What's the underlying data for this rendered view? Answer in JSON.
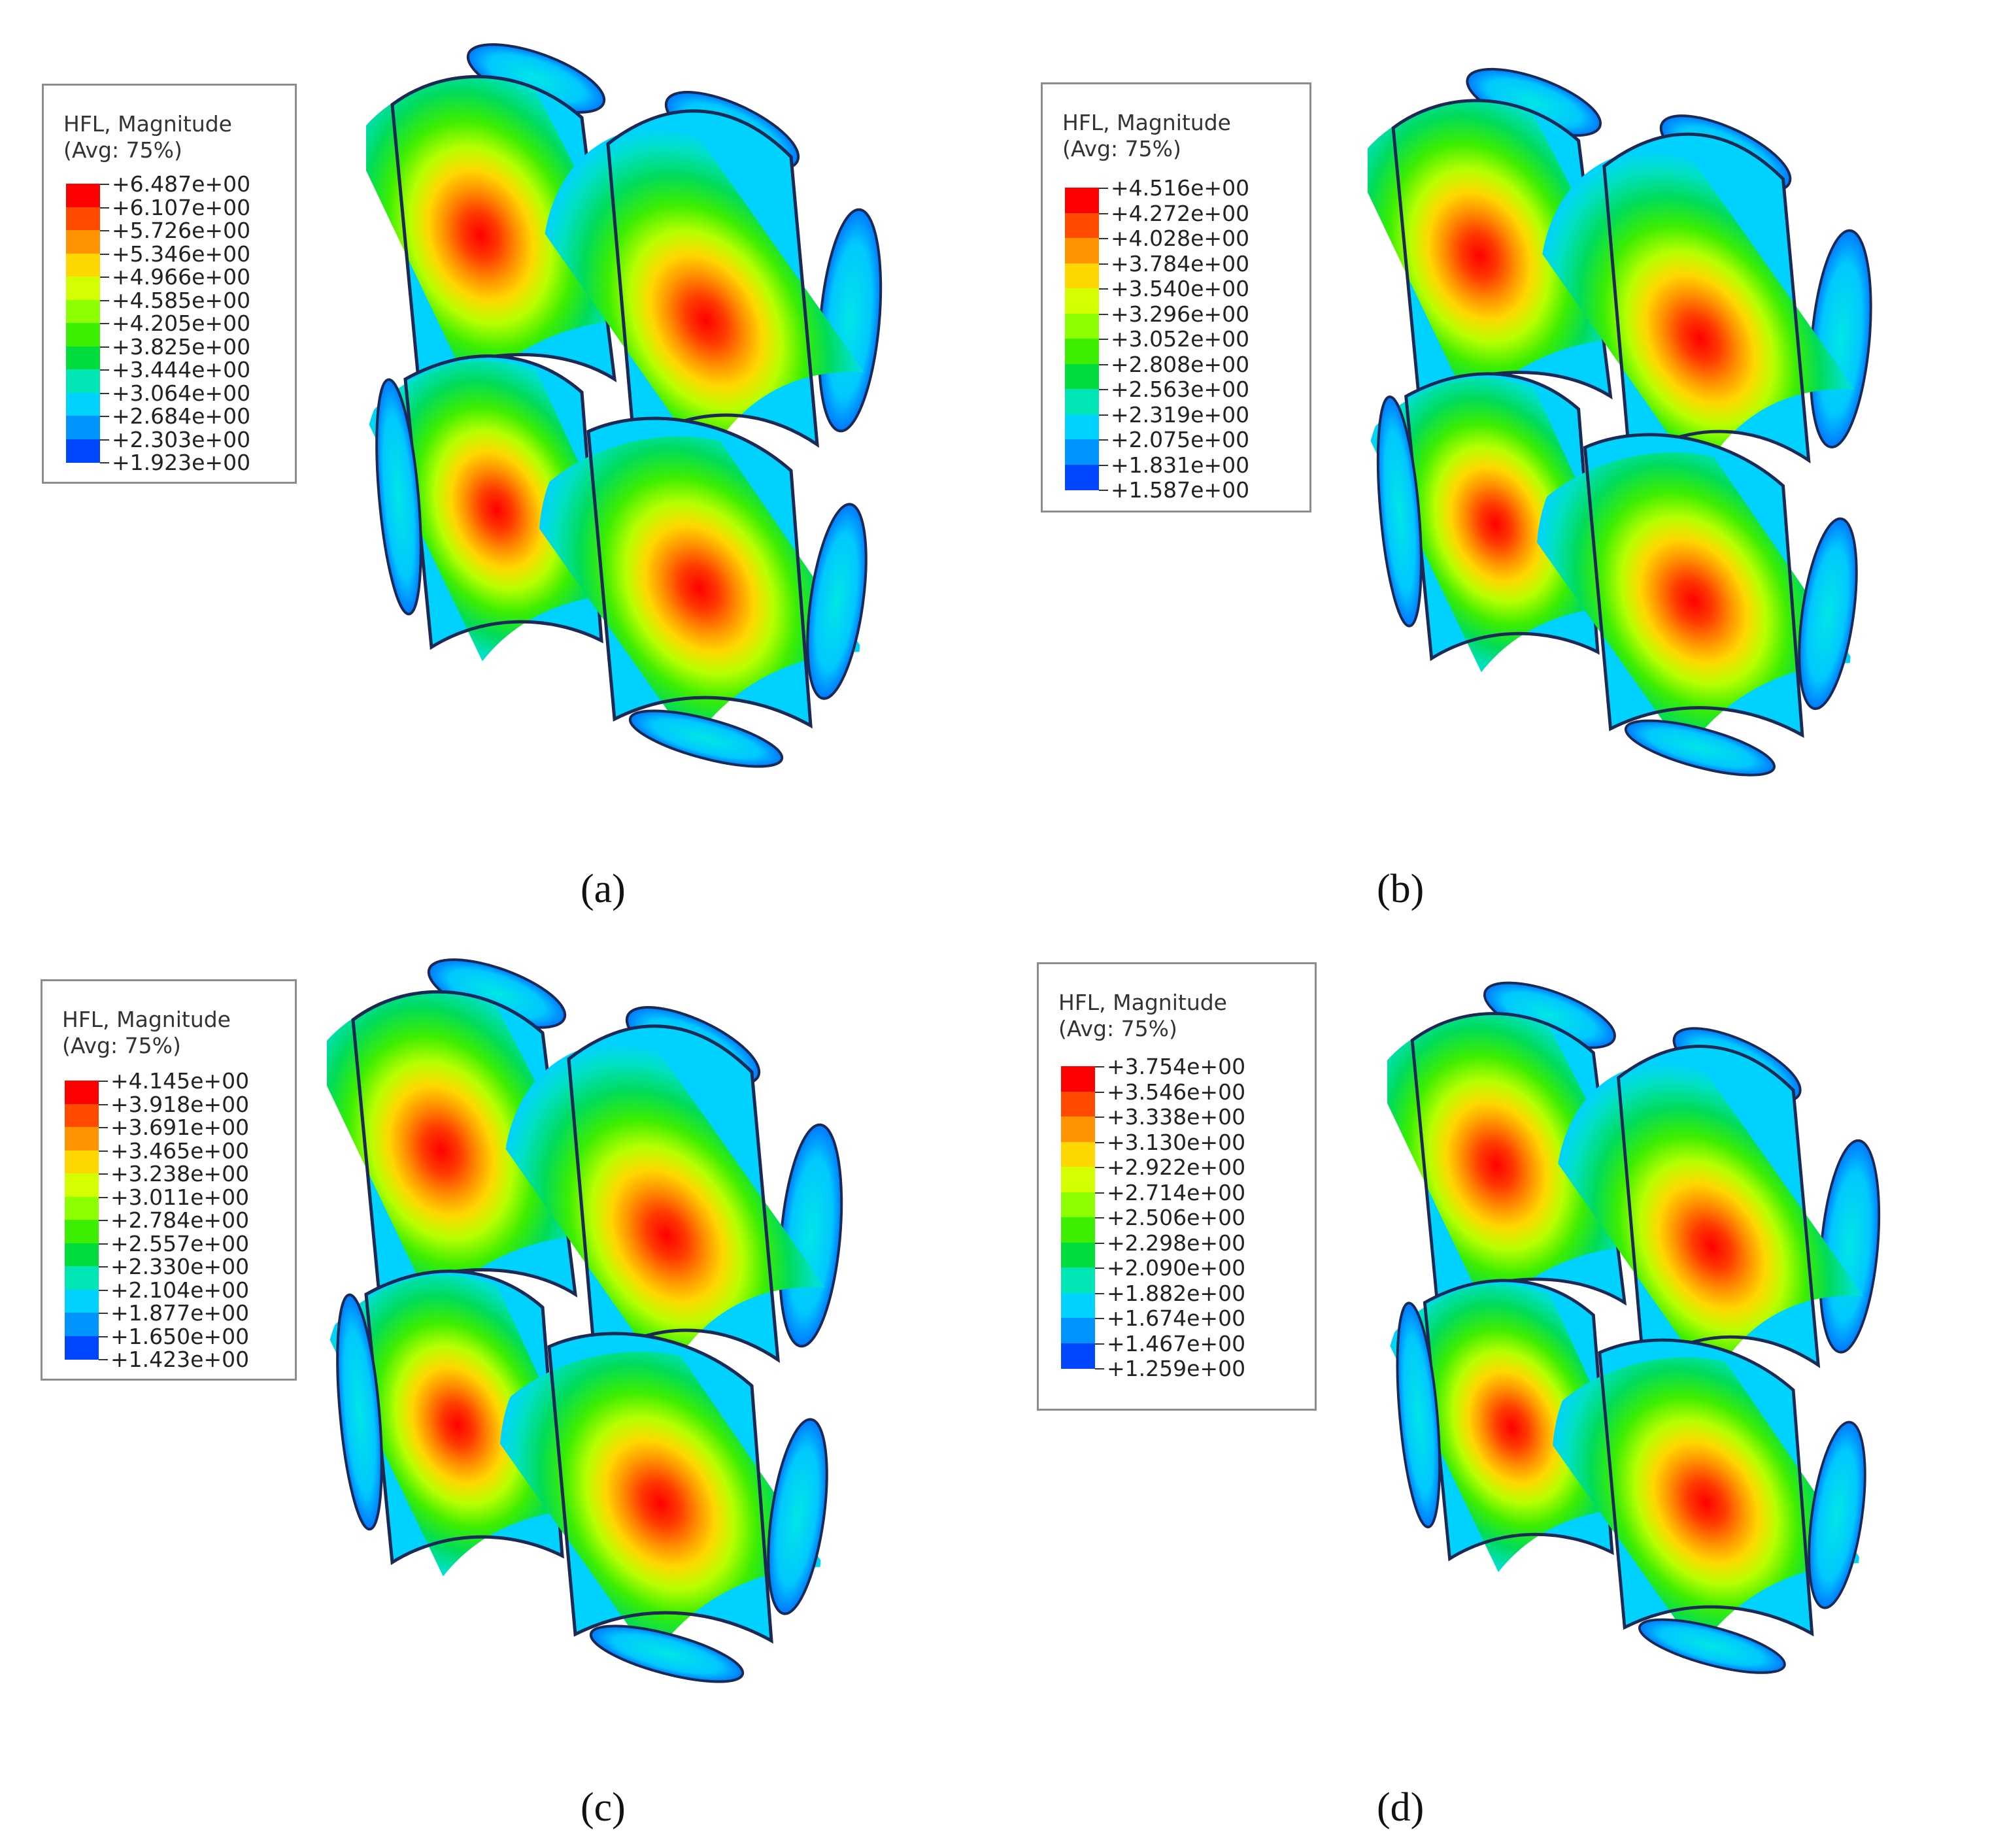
{
  "panels": [
    {
      "id": "a",
      "caption": "(a)",
      "legend": {
        "title": "HFL, Magnitude",
        "subtitle": "(Avg: 75%)",
        "values": [
          "+6.487e+00",
          "+6.107e+00",
          "+5.726e+00",
          "+5.346e+00",
          "+4.966e+00",
          "+4.585e+00",
          "+4.205e+00",
          "+3.825e+00",
          "+3.444e+00",
          "+3.064e+00",
          "+2.684e+00",
          "+2.303e+00",
          "+1.923e+00"
        ]
      }
    },
    {
      "id": "b",
      "caption": "(b)",
      "legend": {
        "title": "HFL, Magnitude",
        "subtitle": "(Avg: 75%)",
        "values": [
          "+4.516e+00",
          "+4.272e+00",
          "+4.028e+00",
          "+3.784e+00",
          "+3.540e+00",
          "+3.296e+00",
          "+3.052e+00",
          "+2.808e+00",
          "+2.563e+00",
          "+2.319e+00",
          "+2.075e+00",
          "+1.831e+00",
          "+1.587e+00"
        ]
      }
    },
    {
      "id": "c",
      "caption": "(c)",
      "legend": {
        "title": "HFL, Magnitude",
        "subtitle": "(Avg: 75%)",
        "values": [
          "+4.145e+00",
          "+3.918e+00",
          "+3.691e+00",
          "+3.465e+00",
          "+3.238e+00",
          "+3.011e+00",
          "+2.784e+00",
          "+2.557e+00",
          "+2.330e+00",
          "+2.104e+00",
          "+1.877e+00",
          "+1.650e+00",
          "+1.423e+00"
        ]
      }
    },
    {
      "id": "d",
      "caption": "(d)",
      "legend": {
        "title": "HFL, Magnitude",
        "subtitle": "(Avg: 75%)",
        "values": [
          "+3.754e+00",
          "+3.546e+00",
          "+3.338e+00",
          "+3.130e+00",
          "+2.922e+00",
          "+2.714e+00",
          "+2.506e+00",
          "+2.298e+00",
          "+2.090e+00",
          "+1.882e+00",
          "+1.674e+00",
          "+1.467e+00",
          "+1.259e+00"
        ]
      }
    }
  ],
  "colors": {
    "contour_scale": [
      "#ff0000",
      "#ff4a00",
      "#ff9400",
      "#ffd700",
      "#d4ff00",
      "#8cff00",
      "#3cee00",
      "#00dc3c",
      "#00e6b4",
      "#00d2ff",
      "#0094ff",
      "#0046ff",
      "#0000ff"
    ],
    "outline": "#1a2a55"
  }
}
